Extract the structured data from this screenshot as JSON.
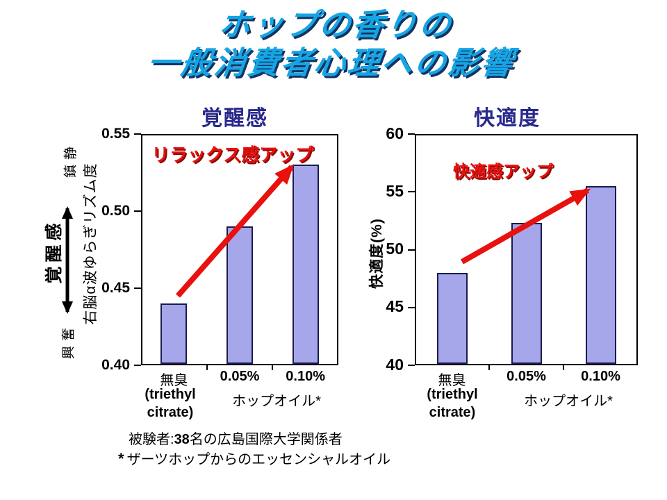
{
  "title": {
    "line1": "ホップの香りの",
    "line2": "一般消費者心理への影響"
  },
  "left_axis_legend": {
    "top": "鎮静",
    "middle": "覚醒感",
    "bottom": "興奮"
  },
  "notes": {
    "line1_label": "被験者:",
    "line1_count": "38",
    "line1_rest": "名の広島国際大学関係者",
    "line2_mark": "*",
    "line2_text": "ザーツホップからのエッセンシャルオイル"
  },
  "colors": {
    "title_fill": "#15A5E5",
    "title_shadow": "#14335F",
    "chart_title": "#28288C",
    "bar_fill": "#A6A6EA",
    "bar_border": "#1A1A4E",
    "red": "#E8110D",
    "axis": "#000000"
  },
  "chart_data": [
    {
      "type": "bar",
      "title": "覚醒感",
      "annotation": "リラックス感アップ",
      "ylabel": "右脳α波ゆらぎリズム度",
      "ylabel_bold": false,
      "ymin": 0.4,
      "ymax": 0.55,
      "yticks": [
        0.4,
        0.45,
        0.5,
        0.55
      ],
      "ytick_labels": [
        "0.40",
        "0.45",
        "0.50",
        "0.55"
      ],
      "categories": [
        "無臭",
        "0.05%",
        "0.10%"
      ],
      "category_bold": [
        false,
        true,
        true
      ],
      "category_sub_lines": [
        "(triethyl",
        "citrate)"
      ],
      "group_label": "ホップオイル*",
      "values": [
        0.44,
        0.49,
        0.53
      ],
      "grid": false,
      "legend_position": "none"
    },
    {
      "type": "bar",
      "title": "快適度",
      "annotation": "快適感アップ",
      "ylabel": "快適度(%)",
      "ylabel_bold": true,
      "ymin": 40,
      "ymax": 60,
      "yticks": [
        40,
        45,
        50,
        55,
        60
      ],
      "ytick_labels": [
        "40",
        "45",
        "50",
        "55",
        "60"
      ],
      "categories": [
        "無臭",
        "0.05%",
        "0.10%"
      ],
      "category_bold": [
        false,
        true,
        true
      ],
      "category_sub_lines": [
        "(triethyl",
        "citrate)"
      ],
      "group_label": "ホップオイル*",
      "values": [
        48,
        52.3,
        55.5
      ],
      "grid": false,
      "legend_position": "none"
    }
  ]
}
